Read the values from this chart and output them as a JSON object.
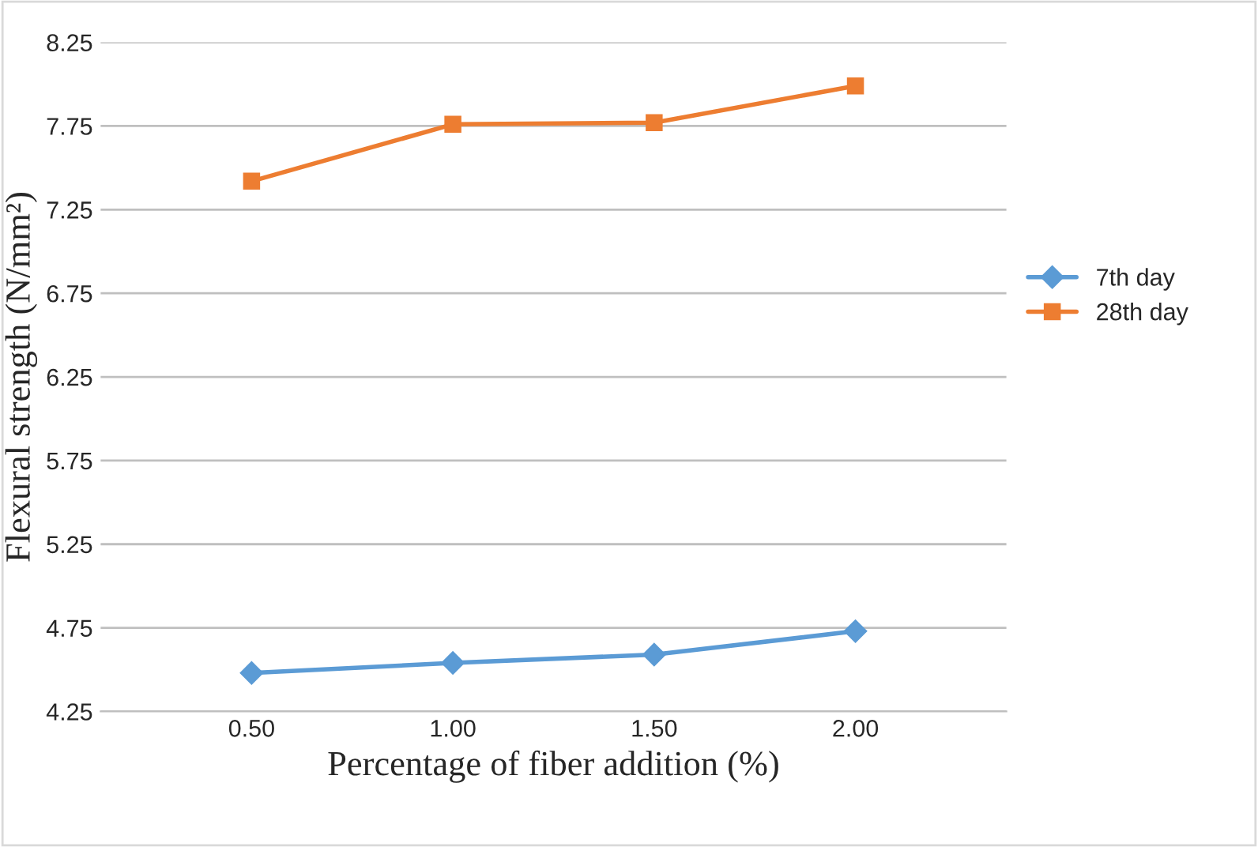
{
  "chart_data": {
    "type": "line",
    "xlabel": "Percentage of fiber addition (%)",
    "ylabel": "Flexural strength (N/mm²)",
    "categories": [
      "0.50",
      "1.00",
      "1.50",
      "2.00"
    ],
    "series": [
      {
        "name": "7th day",
        "color": "#5b9bd5",
        "marker": "diamond",
        "values": [
          4.48,
          4.54,
          4.59,
          4.73
        ]
      },
      {
        "name": "28th day",
        "color": "#ed7d31",
        "marker": "square",
        "values": [
          7.42,
          7.76,
          7.77,
          7.99
        ]
      }
    ],
    "ylim": [
      4.25,
      8.25
    ],
    "yticks": [
      {
        "value": 4.25,
        "label": "4.25"
      },
      {
        "value": 4.75,
        "label": "4.75"
      },
      {
        "value": 5.25,
        "label": "5.25"
      },
      {
        "value": 5.75,
        "label": "5.75"
      },
      {
        "value": 6.25,
        "label": "6.25"
      },
      {
        "value": 6.75,
        "label": "6.75"
      },
      {
        "value": 7.25,
        "label": "7.25"
      },
      {
        "value": 7.75,
        "label": "7.75"
      },
      {
        "value": 8.25,
        "label": "8.25"
      }
    ],
    "grid": "y",
    "legend": "right"
  }
}
